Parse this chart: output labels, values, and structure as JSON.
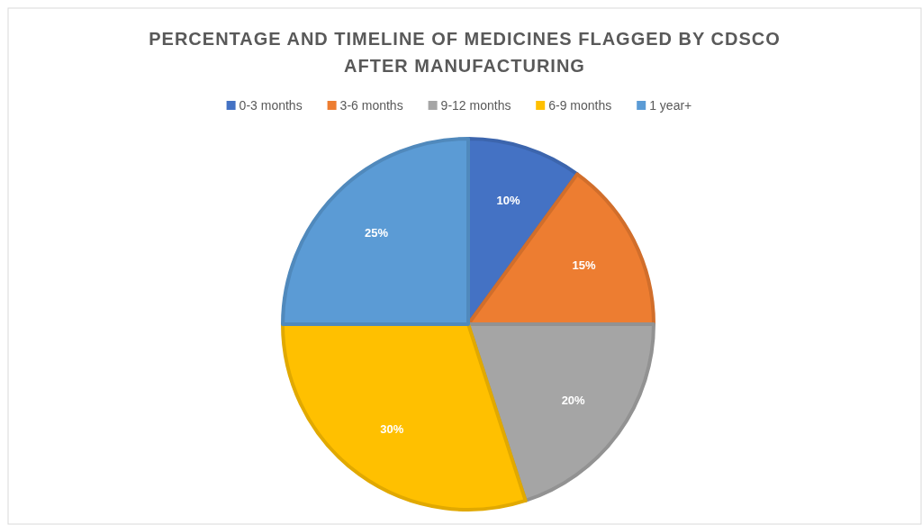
{
  "chart_data": {
    "type": "pie",
    "title": "PERCENTAGE AND TIMELINE OF MEDICINES FLAGGED BY CDSCO AFTER MANUFACTURING",
    "categories": [
      "0-3 months",
      "3-6 months",
      "9-12 months",
      "6-9 months",
      "1 year+"
    ],
    "values": [
      10,
      15,
      20,
      30,
      25
    ],
    "colors": [
      "#4472c4",
      "#ed7d31",
      "#a5a5a5",
      "#ffc000",
      "#5b9bd5"
    ],
    "value_labels": [
      "10%",
      "15%",
      "20%",
      "30%",
      "25%"
    ],
    "legend": "top"
  }
}
